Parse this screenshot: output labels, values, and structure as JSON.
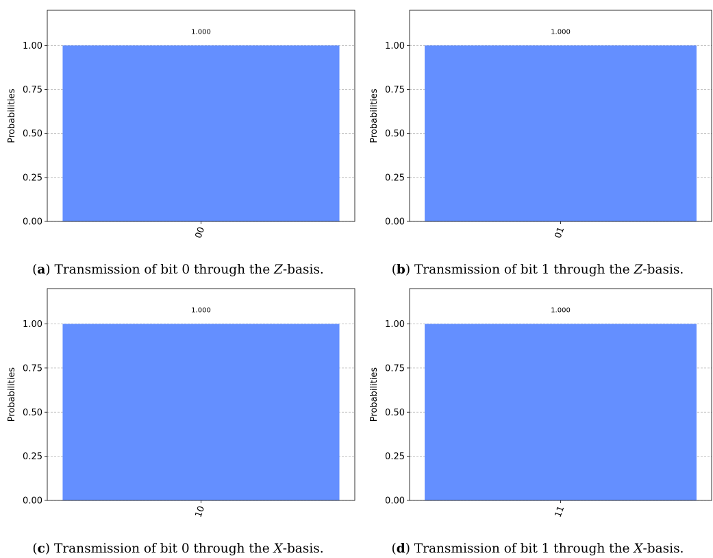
{
  "chart_data": [
    {
      "type": "bar",
      "categories": [
        "00"
      ],
      "values": [
        1.0
      ],
      "value_labels": [
        "1.000"
      ],
      "ylabel": "Probabilities",
      "ylim": [
        0,
        1.2
      ],
      "yticks": [
        "0.00",
        "0.25",
        "0.50",
        "0.75",
        "1.00"
      ],
      "grid": "horizontal dashed",
      "bar_color": "#648fff",
      "caption": {
        "tag": "a",
        "before": " Transmission of bit 0 through the ",
        "basis": "Z",
        "after": "-basis."
      }
    },
    {
      "type": "bar",
      "categories": [
        "01"
      ],
      "values": [
        1.0
      ],
      "value_labels": [
        "1.000"
      ],
      "ylabel": "Probabilities",
      "ylim": [
        0,
        1.2
      ],
      "yticks": [
        "0.00",
        "0.25",
        "0.50",
        "0.75",
        "1.00"
      ],
      "grid": "horizontal dashed",
      "bar_color": "#648fff",
      "caption": {
        "tag": "b",
        "before": " Transmission of bit 1 through the ",
        "basis": "Z",
        "after": "-basis."
      }
    },
    {
      "type": "bar",
      "categories": [
        "10"
      ],
      "values": [
        1.0
      ],
      "value_labels": [
        "1.000"
      ],
      "ylabel": "Probabilities",
      "ylim": [
        0,
        1.2
      ],
      "yticks": [
        "0.00",
        "0.25",
        "0.50",
        "0.75",
        "1.00"
      ],
      "grid": "horizontal dashed",
      "bar_color": "#648fff",
      "caption": {
        "tag": "c",
        "before": " Transmission of bit 0 through the ",
        "basis": "X",
        "after": "-basis."
      }
    },
    {
      "type": "bar",
      "categories": [
        "11"
      ],
      "values": [
        1.0
      ],
      "value_labels": [
        "1.000"
      ],
      "ylabel": "Probabilities",
      "ylim": [
        0,
        1.2
      ],
      "yticks": [
        "0.00",
        "0.25",
        "0.50",
        "0.75",
        "1.00"
      ],
      "grid": "horizontal dashed",
      "bar_color": "#648fff",
      "caption": {
        "tag": "d",
        "before": " Transmission of bit 1 through the ",
        "basis": "X",
        "after": "-basis."
      }
    }
  ]
}
